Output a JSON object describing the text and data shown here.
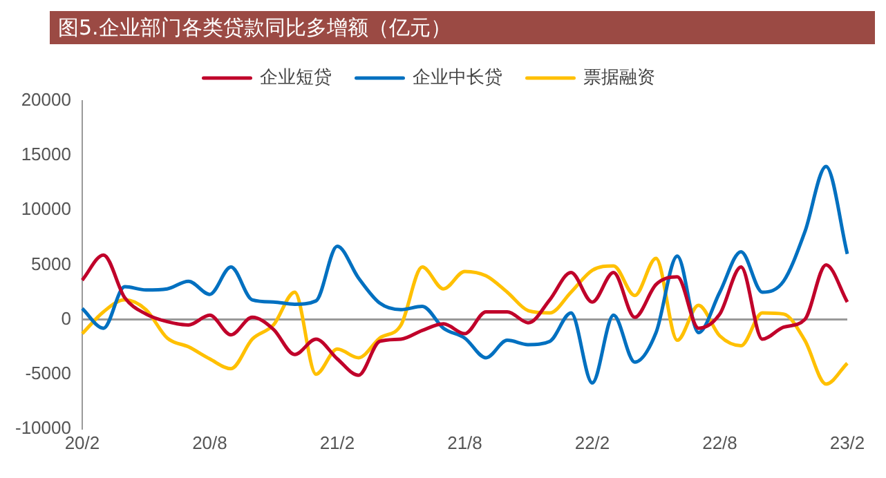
{
  "chart_data": {
    "type": "line",
    "title": "图5.企业部门各类贷款同比多增额（亿元）",
    "categories": [
      "20/2",
      null,
      null,
      null,
      null,
      null,
      "20/8",
      null,
      null,
      null,
      null,
      null,
      "21/2",
      null,
      null,
      null,
      null,
      null,
      "21/8",
      null,
      null,
      null,
      null,
      null,
      "22/2",
      null,
      null,
      null,
      null,
      null,
      "22/8",
      null,
      null,
      null,
      null,
      null,
      "23/2"
    ],
    "series": [
      {
        "name": "企业短贷",
        "color": "#c0002a",
        "values": [
          3600,
          5900,
          2000,
          500,
          -200,
          -500,
          400,
          -1400,
          200,
          -900,
          -3200,
          -1800,
          -3600,
          -5100,
          -2000,
          -1800,
          -1000,
          -400,
          -1300,
          700,
          700,
          -300,
          1800,
          4300,
          1600,
          4300,
          200,
          3200,
          3900,
          -800,
          500,
          4800,
          -1800,
          -700,
          0,
          5000,
          1600
        ]
      },
      {
        "name": "企业中长贷",
        "color": "#0070c0",
        "values": [
          1000,
          -800,
          3000,
          2700,
          2800,
          3500,
          2300,
          4800,
          1800,
          1600,
          1400,
          1700,
          6700,
          3800,
          1500,
          900,
          1200,
          -800,
          -1700,
          -3500,
          -1900,
          -2300,
          -2000,
          600,
          -5800,
          400,
          -3900,
          -1200,
          5800,
          -1200,
          2500,
          6200,
          2500,
          3500,
          8000,
          14000,
          6000
        ]
      },
      {
        "name": "票据融资",
        "color": "#ffc000",
        "values": [
          -1300,
          700,
          1800,
          900,
          -1700,
          -2500,
          -3600,
          -4500,
          -1800,
          -500,
          2500,
          -5000,
          -2700,
          -3500,
          -1700,
          -500,
          4800,
          2800,
          4400,
          4000,
          2500,
          800,
          600,
          2500,
          4500,
          4900,
          2200,
          5600,
          -1900,
          1300,
          -1500,
          -2400,
          600,
          500,
          -1900,
          -5900,
          -4000
        ]
      }
    ],
    "ylim": [
      -10000,
      20000
    ],
    "yticks": [
      -10000,
      -5000,
      0,
      5000,
      10000,
      15000,
      20000
    ],
    "ref_lines": [
      {
        "axis": "y",
        "value": 0,
        "color": "#999999"
      }
    ],
    "grid": false,
    "legend": "top",
    "marker": "none",
    "line_style": "solid"
  }
}
